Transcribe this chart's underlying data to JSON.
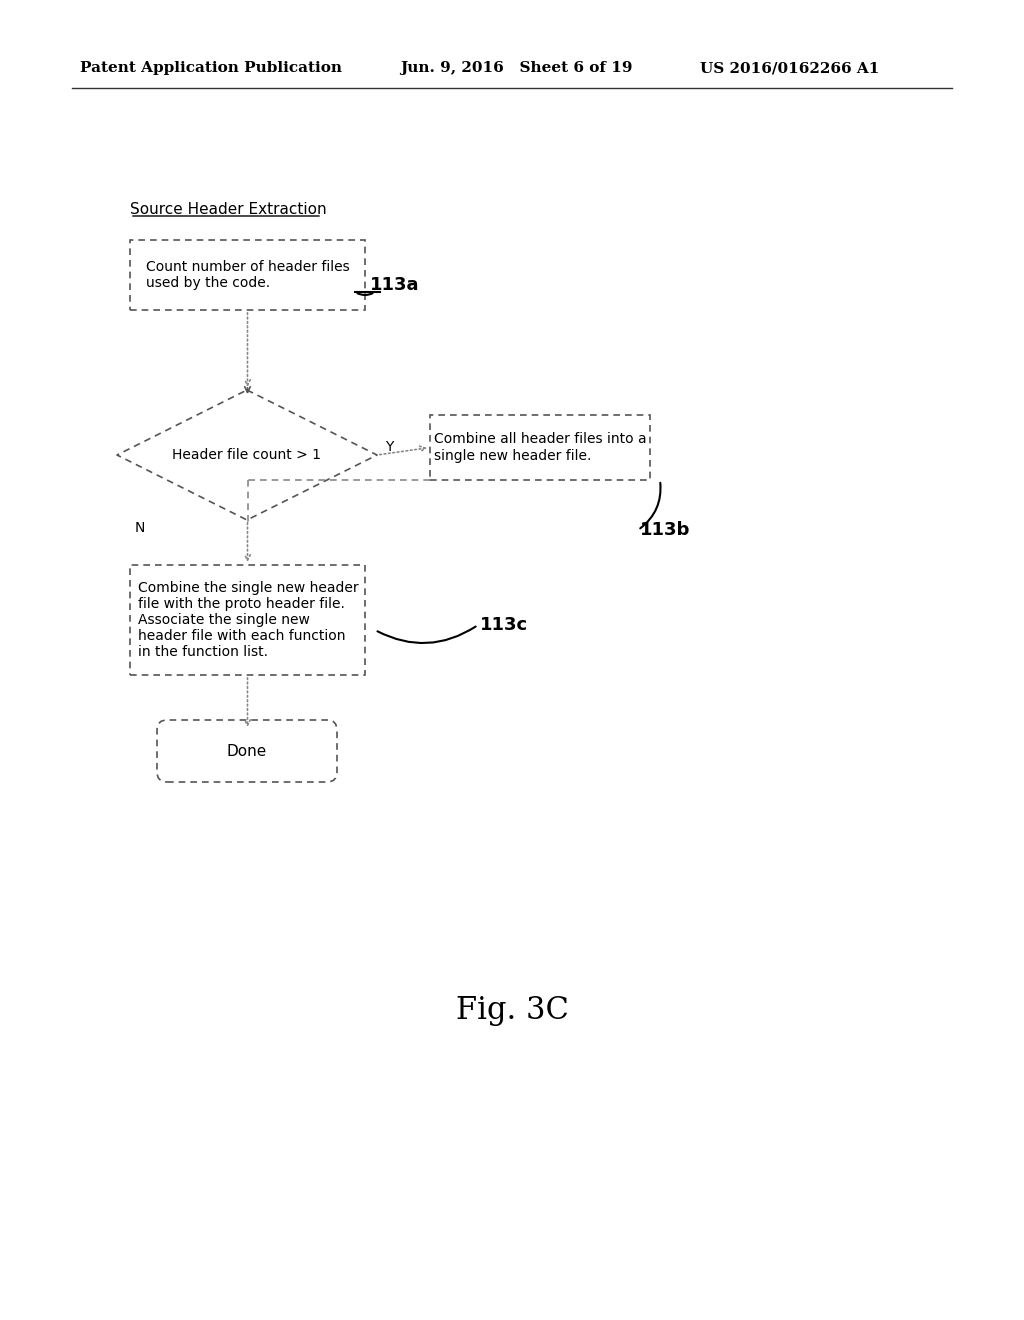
{
  "header_left": "Patent Application Publication",
  "header_mid": "Jun. 9, 2016   Sheet 6 of 19",
  "header_right": "US 2016/0162266 A1",
  "section_label": "Source Header Extraction",
  "box1_text": "Count number of header files\nused by the code.",
  "box1_label": "113a",
  "diamond_text": "Header file count > 1",
  "diamond_y_label": "Y",
  "diamond_n_label": "N",
  "box2_text": "Combine all header files into a\nsingle new header file.",
  "box2_label": "113b",
  "box3_text": "Combine the single new header\nfile with the proto header file.\nAssociate the single new\nheader file with each function\nin the function list.",
  "box3_label": "113c",
  "terminal_text": "Done",
  "fig_label": "Fig. 3C",
  "bg_color": "#ffffff",
  "box_edge_color": "#555555",
  "line_color": "#555555",
  "text_color": "#000000",
  "dash_color": "#888888"
}
